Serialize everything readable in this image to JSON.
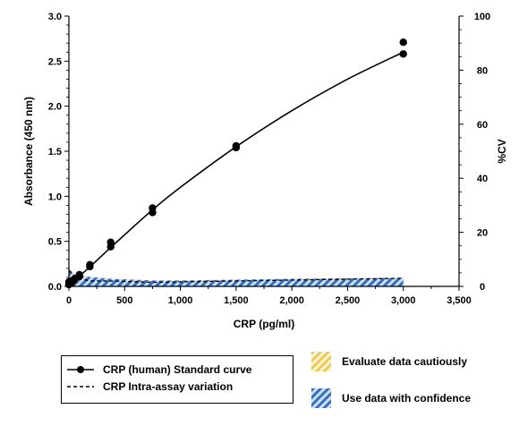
{
  "chart_data": {
    "type": "line",
    "xlabel": "CRP (pg/ml)",
    "ylabel": "Absorbance (450 nm)",
    "y2label": "%CV",
    "xlim": [
      0,
      3500
    ],
    "ylim": [
      0,
      3.0
    ],
    "y2lim": [
      0,
      100
    ],
    "x_ticks": [
      0,
      500,
      1000,
      1500,
      2000,
      2500,
      3000,
      3500
    ],
    "x_tick_labels": [
      "0",
      "500",
      "1,000",
      "1,500",
      "2,000",
      "2,500",
      "3,000",
      "3,500"
    ],
    "y_ticks": [
      0,
      0.5,
      1.0,
      1.5,
      2.0,
      2.5,
      3.0
    ],
    "y_tick_labels": [
      "0.0",
      "0.5",
      "1.0",
      "1.5",
      "2.0",
      "2.5",
      "3.0"
    ],
    "y2_ticks": [
      0,
      20,
      40,
      60,
      80,
      100
    ],
    "y2_tick_labels": [
      "0",
      "20",
      "40",
      "60",
      "80",
      "100"
    ],
    "grid": false,
    "series": [
      {
        "name": "CRP (human) Standard curve",
        "style": "solid-line-with-markers",
        "points": [
          [
            0,
            0.02
          ],
          [
            0,
            0.05
          ],
          [
            23,
            0.04
          ],
          [
            23,
            0.06
          ],
          [
            47,
            0.07
          ],
          [
            47,
            0.08
          ],
          [
            94,
            0.11
          ],
          [
            94,
            0.13
          ],
          [
            188,
            0.22
          ],
          [
            188,
            0.24
          ],
          [
            375,
            0.44
          ],
          [
            375,
            0.49
          ],
          [
            750,
            0.82
          ],
          [
            750,
            0.87
          ],
          [
            1500,
            1.54
          ],
          [
            1500,
            1.56
          ],
          [
            3000,
            2.58
          ],
          [
            3000,
            2.71
          ]
        ],
        "curve": [
          [
            0,
            0.02
          ],
          [
            100,
            0.12
          ],
          [
            200,
            0.23
          ],
          [
            400,
            0.46
          ],
          [
            750,
            0.85
          ],
          [
            1000,
            1.1
          ],
          [
            1500,
            1.55
          ],
          [
            2000,
            1.95
          ],
          [
            2500,
            2.3
          ],
          [
            3000,
            2.6
          ]
        ]
      },
      {
        "name": "CRP Intra-assay variation",
        "style": "dashed-line",
        "axis": "y2",
        "points": [
          [
            0,
            6
          ],
          [
            47,
            4
          ],
          [
            94,
            3
          ],
          [
            188,
            2
          ],
          [
            375,
            2
          ],
          [
            750,
            1.5
          ],
          [
            1500,
            2
          ],
          [
            3000,
            3
          ]
        ]
      }
    ],
    "zones": [
      {
        "name": "Evaluate data cautiously",
        "axis": "y2",
        "color": "#f2c94c",
        "points": [
          [
            0,
            8
          ],
          [
            20,
            6
          ],
          [
            47,
            4.5
          ],
          [
            94,
            3.5
          ]
        ]
      },
      {
        "name": "Use data with confidence",
        "axis": "y2",
        "color": "#2f6fc4",
        "points": [
          [
            0,
            6
          ],
          [
            47,
            4.5
          ],
          [
            94,
            4
          ],
          [
            188,
            3.5
          ],
          [
            375,
            2.8
          ],
          [
            750,
            2.2
          ],
          [
            1000,
            2.2
          ],
          [
            1500,
            2.5
          ],
          [
            2000,
            2.8
          ],
          [
            2500,
            3
          ],
          [
            3000,
            3.2
          ]
        ]
      }
    ]
  },
  "legend": {
    "standard_curve": "CRP (human) Standard curve",
    "intra_assay": "CRP Intra-assay variation",
    "caution": "Evaluate data cautiously",
    "confidence": "Use data with confidence"
  },
  "colors": {
    "caution_stripe": "#f2c94c",
    "confidence_stripe": "#2f6fc4"
  }
}
